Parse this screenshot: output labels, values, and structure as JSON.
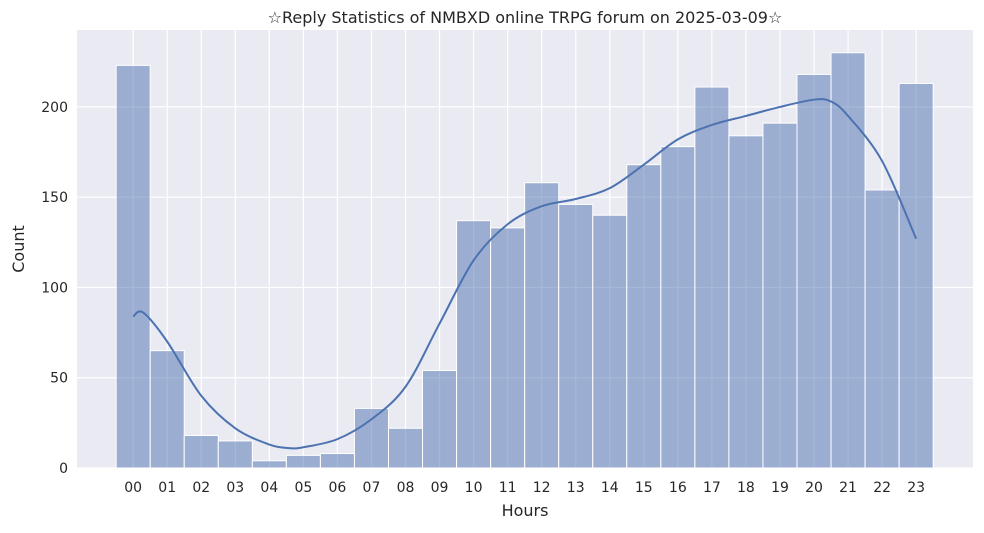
{
  "chart_data": {
    "type": "bar",
    "title": "☆Reply Statistics of NMBXD online TRPG forum on 2025-03-09☆",
    "xlabel": "Hours",
    "ylabel": "Count",
    "categories": [
      "00",
      "01",
      "02",
      "03",
      "04",
      "05",
      "06",
      "07",
      "08",
      "09",
      "10",
      "11",
      "12",
      "13",
      "14",
      "15",
      "16",
      "17",
      "18",
      "19",
      "20",
      "21",
      "22",
      "23"
    ],
    "values": [
      223,
      65,
      18,
      15,
      4,
      7,
      8,
      33,
      22,
      54,
      137,
      133,
      158,
      146,
      140,
      168,
      178,
      211,
      184,
      191,
      218,
      230,
      154,
      213
    ],
    "yticks": [
      0,
      50,
      100,
      150,
      200
    ],
    "ylim": [
      0,
      242.6
    ],
    "xlim": [
      -1.65,
      24.67
    ],
    "grid": true,
    "kde": {
      "x": [
        0,
        0.3,
        1,
        2,
        3,
        4,
        4.6,
        5,
        6,
        7,
        8,
        9,
        10,
        11,
        12,
        13,
        14,
        15,
        16,
        17,
        18,
        19,
        20,
        20.5,
        21,
        22,
        23
      ],
      "y": [
        84,
        86,
        70,
        40,
        22,
        13,
        11,
        11.5,
        16,
        27,
        45,
        80,
        115,
        135,
        145,
        149,
        155,
        168,
        182,
        190,
        195,
        200,
        204,
        203,
        195,
        170,
        127
      ]
    },
    "colors": {
      "bar": "#4C72B0",
      "background": "#EAEAF2",
      "grid": "#FFFFFF",
      "line": "#4C72B0"
    }
  }
}
